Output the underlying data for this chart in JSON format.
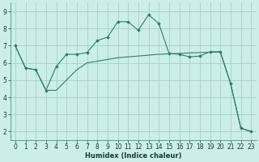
{
  "line1_x": [
    0,
    1,
    2,
    3,
    4,
    5,
    6,
    7,
    8,
    9,
    10,
    11,
    12,
    13,
    14,
    15,
    16,
    17,
    18,
    19,
    20,
    21,
    22,
    23
  ],
  "line1_y": [
    7.0,
    5.7,
    5.6,
    4.4,
    5.8,
    6.5,
    6.5,
    6.6,
    7.3,
    7.5,
    8.4,
    8.4,
    7.9,
    8.8,
    8.3,
    6.55,
    6.5,
    6.35,
    6.4,
    6.65,
    6.65,
    4.8,
    2.2,
    2.0
  ],
  "line2_x": [
    0,
    1,
    2,
    3,
    4,
    5,
    6,
    7,
    8,
    9,
    10,
    11,
    12,
    13,
    14,
    15,
    16,
    17,
    18,
    19,
    20,
    21,
    22,
    23
  ],
  "line2_y": [
    7.0,
    5.7,
    5.6,
    4.4,
    4.4,
    5.0,
    5.6,
    6.0,
    6.1,
    6.2,
    6.3,
    6.35,
    6.4,
    6.45,
    6.5,
    6.53,
    6.55,
    6.58,
    6.6,
    6.62,
    6.63,
    4.8,
    2.2,
    2.0
  ],
  "color": "#2d7d6e",
  "bg_color": "#cceee8",
  "grid_color": "#aad4ce",
  "xlabel": "Humidex (Indice chaleur)",
  "xlim": [
    -0.5,
    23.5
  ],
  "ylim": [
    1.5,
    9.5
  ],
  "yticks": [
    2,
    3,
    4,
    5,
    6,
    7,
    8,
    9
  ],
  "xticks": [
    0,
    1,
    2,
    3,
    4,
    5,
    6,
    7,
    8,
    9,
    10,
    11,
    12,
    13,
    14,
    15,
    16,
    17,
    18,
    19,
    20,
    21,
    22,
    23
  ],
  "xlabel_fontsize": 6.0,
  "tick_fontsize": 5.5,
  "xlabel_bold": true
}
